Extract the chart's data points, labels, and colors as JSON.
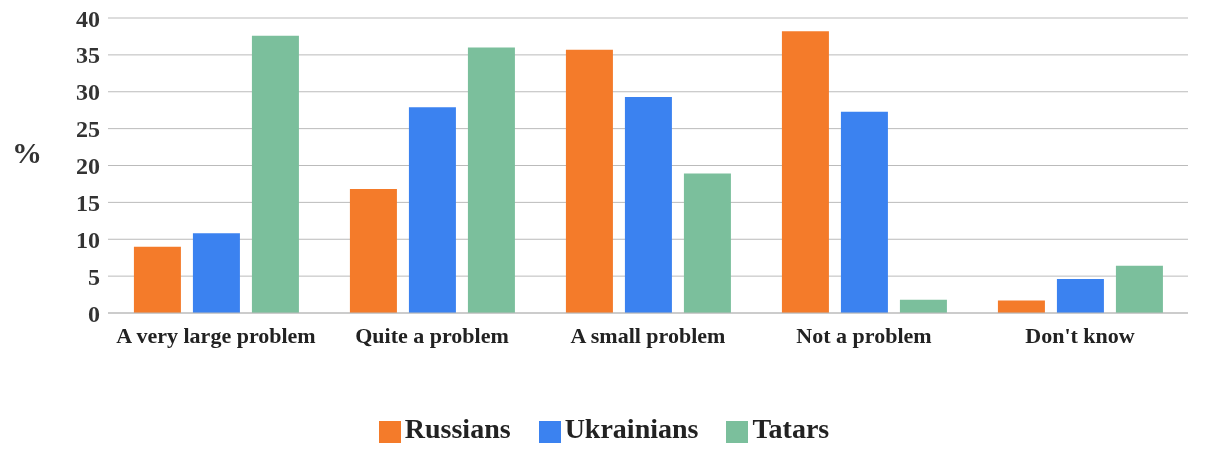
{
  "chart_data": {
    "type": "bar",
    "ylabel": "%",
    "categories": [
      "A very large problem",
      "Quite a problem",
      "A small problem",
      "Not a problem",
      "Don't know"
    ],
    "series": [
      {
        "name": "Russians",
        "color": "#f47b2a",
        "values": [
          9.0,
          16.8,
          35.7,
          38.2,
          1.7
        ]
      },
      {
        "name": "Ukrainians",
        "color": "#3b82f0",
        "values": [
          10.8,
          27.9,
          29.3,
          27.3,
          4.6
        ]
      },
      {
        "name": "Tatars",
        "color": "#7bbf9c",
        "values": [
          37.6,
          36.0,
          18.9,
          1.8,
          6.4
        ]
      }
    ],
    "ylim": [
      0,
      40
    ],
    "yticks": [
      0,
      5,
      10,
      15,
      20,
      25,
      30,
      35,
      40
    ],
    "grid": "y",
    "legend": "bottom"
  }
}
